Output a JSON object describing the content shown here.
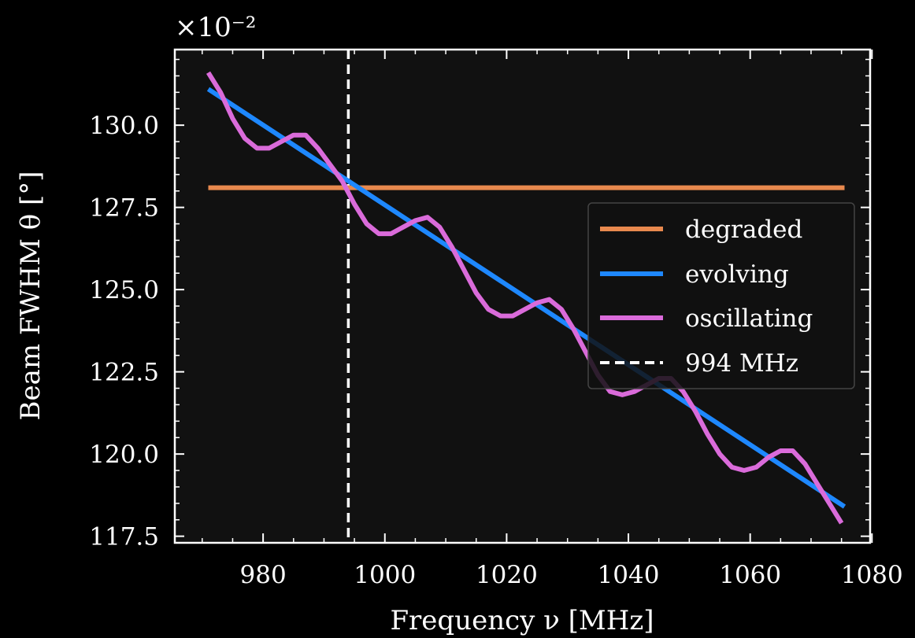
{
  "chart_data": {
    "type": "line",
    "title": "",
    "offset_label": "×10⁻²",
    "xlabel": "Frequency ν [MHz]",
    "ylabel": "Beam FWHM θ [°]",
    "xlim": [
      965.5,
      1079.7
    ],
    "ylim": [
      117.3,
      132.3
    ],
    "xticks": [
      980,
      1000,
      1020,
      1040,
      1060,
      1080
    ],
    "yticks": [
      117.5,
      120.0,
      122.5,
      125.0,
      127.5,
      130.0
    ],
    "xtick_labels": [
      "980",
      "1000",
      "1020",
      "1040",
      "1060",
      "1080"
    ],
    "ytick_labels": [
      "117.5",
      "120.0",
      "122.5",
      "125.0",
      "127.5",
      "130.0"
    ],
    "grid": false,
    "legend_position": "center-right",
    "vline": {
      "x": 994,
      "label": "994 MHz",
      "color": "#ffffff",
      "style": "dashed"
    },
    "series": [
      {
        "name": "degraded",
        "color": "#E8894E",
        "x": [
          971,
          1075.5
        ],
        "y": [
          128.1,
          128.1
        ]
      },
      {
        "name": "evolving",
        "color": "#1E88FF",
        "x": [
          971,
          1075.5
        ],
        "y": [
          131.1,
          118.4
        ]
      },
      {
        "name": "oscillating",
        "color": "#DA6BDA",
        "x": [
          971,
          973,
          975,
          977,
          979,
          981,
          983,
          985,
          987,
          989,
          991,
          993,
          995,
          997,
          999,
          1001,
          1003,
          1005,
          1007,
          1009,
          1011,
          1013,
          1015,
          1017,
          1019,
          1021,
          1023,
          1025,
          1027,
          1029,
          1031,
          1033,
          1035,
          1037,
          1039,
          1041,
          1043,
          1045,
          1047,
          1049,
          1051,
          1053,
          1055,
          1057,
          1059,
          1061,
          1063,
          1065,
          1067,
          1069,
          1071,
          1073,
          1075
        ],
        "y": [
          131.6,
          131.0,
          130.2,
          129.6,
          129.3,
          129.3,
          129.5,
          129.7,
          129.7,
          129.3,
          128.8,
          128.3,
          127.6,
          127.0,
          126.7,
          126.7,
          126.9,
          127.1,
          127.2,
          126.9,
          126.3,
          125.6,
          124.9,
          124.4,
          124.2,
          124.2,
          124.4,
          124.6,
          124.7,
          124.4,
          123.8,
          123.1,
          122.4,
          121.9,
          121.8,
          121.9,
          122.1,
          122.3,
          122.3,
          121.9,
          121.3,
          120.6,
          120.0,
          119.6,
          119.5,
          119.6,
          119.9,
          120.1,
          120.1,
          119.7,
          119.1,
          118.5,
          117.9
        ]
      }
    ]
  }
}
